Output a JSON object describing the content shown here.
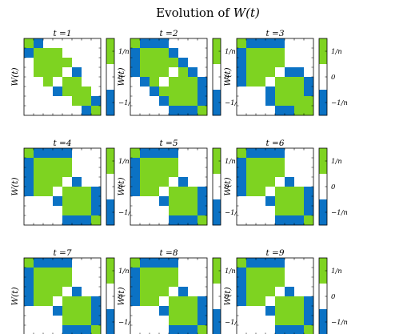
{
  "colors": {
    "positive": "#7ED321",
    "zero": "#FFFFFF",
    "negative": "#0B72C4"
  },
  "chart_data": {
    "type": "heatmap",
    "title": "Evolution of W(t)",
    "title_parts": {
      "before": "Evolution of ",
      "math": "W(t)"
    },
    "ylabel": "W(t)",
    "grid_rows": 3,
    "grid_cols": 3,
    "matrix_size": 8,
    "value_scale": "1/n",
    "colorbar": {
      "ticks": [
        {
          "value": 1,
          "label": "1/n"
        },
        {
          "value": 0,
          "label": "0"
        },
        {
          "value": -1,
          "label": "−1/n"
        }
      ]
    },
    "panels": [
      {
        "title": "t =1",
        "matrix": [
          [
            1,
            -1,
            0,
            0,
            0,
            0,
            0,
            0
          ],
          [
            -1,
            1,
            1,
            1,
            0,
            0,
            0,
            0
          ],
          [
            0,
            1,
            1,
            1,
            1,
            0,
            0,
            0
          ],
          [
            0,
            1,
            1,
            1,
            0,
            -1,
            0,
            0
          ],
          [
            0,
            0,
            1,
            0,
            1,
            1,
            0,
            0
          ],
          [
            0,
            0,
            0,
            -1,
            1,
            1,
            1,
            0
          ],
          [
            0,
            0,
            0,
            0,
            0,
            1,
            1,
            -1
          ],
          [
            0,
            0,
            0,
            0,
            0,
            0,
            -1,
            1
          ]
        ]
      },
      {
        "title": "t =2",
        "matrix": [
          [
            1,
            -1,
            -1,
            -1,
            0,
            0,
            0,
            0
          ],
          [
            -1,
            1,
            1,
            1,
            -1,
            0,
            0,
            0
          ],
          [
            -1,
            1,
            1,
            1,
            1,
            -1,
            0,
            0
          ],
          [
            -1,
            1,
            1,
            1,
            0,
            1,
            -1,
            0
          ],
          [
            0,
            -1,
            1,
            0,
            1,
            1,
            1,
            -1
          ],
          [
            0,
            0,
            -1,
            1,
            1,
            1,
            1,
            -1
          ],
          [
            0,
            0,
            0,
            -1,
            1,
            1,
            1,
            -1
          ],
          [
            0,
            0,
            0,
            0,
            -1,
            -1,
            -1,
            1
          ]
        ]
      },
      {
        "title": "t =3",
        "matrix": [
          [
            1,
            -1,
            -1,
            -1,
            -1,
            0,
            0,
            0
          ],
          [
            -1,
            1,
            1,
            1,
            1,
            0,
            0,
            0
          ],
          [
            -1,
            1,
            1,
            1,
            1,
            0,
            0,
            0
          ],
          [
            -1,
            1,
            1,
            1,
            0,
            -1,
            -1,
            0
          ],
          [
            -1,
            1,
            1,
            0,
            1,
            1,
            1,
            -1
          ],
          [
            0,
            0,
            0,
            -1,
            1,
            1,
            1,
            -1
          ],
          [
            0,
            0,
            0,
            -1,
            1,
            1,
            1,
            1
          ],
          [
            0,
            0,
            0,
            0,
            -1,
            -1,
            1,
            1
          ]
        ]
      },
      {
        "title": "t =4",
        "matrix": [
          [
            1,
            -1,
            -1,
            -1,
            -1,
            0,
            0,
            0
          ],
          [
            -1,
            1,
            1,
            1,
            1,
            0,
            0,
            0
          ],
          [
            -1,
            1,
            1,
            1,
            1,
            0,
            0,
            0
          ],
          [
            -1,
            1,
            1,
            1,
            0,
            -1,
            0,
            0
          ],
          [
            -1,
            1,
            1,
            0,
            1,
            1,
            1,
            -1
          ],
          [
            0,
            0,
            0,
            -1,
            1,
            1,
            1,
            -1
          ],
          [
            0,
            0,
            0,
            0,
            1,
            1,
            1,
            -1
          ],
          [
            0,
            0,
            0,
            0,
            -1,
            -1,
            -1,
            1
          ]
        ]
      },
      {
        "title": "t =5",
        "matrix": [
          [
            1,
            -1,
            -1,
            -1,
            -1,
            0,
            0,
            0
          ],
          [
            -1,
            1,
            1,
            1,
            1,
            0,
            0,
            0
          ],
          [
            -1,
            1,
            1,
            1,
            1,
            0,
            0,
            0
          ],
          [
            -1,
            1,
            1,
            1,
            0,
            -1,
            0,
            0
          ],
          [
            -1,
            1,
            1,
            0,
            1,
            1,
            1,
            -1
          ],
          [
            0,
            0,
            0,
            -1,
            1,
            1,
            1,
            -1
          ],
          [
            0,
            0,
            0,
            0,
            1,
            1,
            1,
            -1
          ],
          [
            0,
            0,
            0,
            0,
            -1,
            -1,
            -1,
            1
          ]
        ]
      },
      {
        "title": "t =6",
        "matrix": [
          [
            1,
            -1,
            -1,
            -1,
            -1,
            0,
            0,
            0
          ],
          [
            -1,
            1,
            1,
            1,
            1,
            0,
            0,
            0
          ],
          [
            -1,
            1,
            1,
            1,
            1,
            0,
            0,
            0
          ],
          [
            -1,
            1,
            1,
            1,
            0,
            -1,
            0,
            0
          ],
          [
            -1,
            1,
            1,
            0,
            1,
            1,
            1,
            -1
          ],
          [
            0,
            0,
            0,
            -1,
            1,
            1,
            1,
            -1
          ],
          [
            0,
            0,
            0,
            0,
            1,
            1,
            1,
            -1
          ],
          [
            0,
            0,
            0,
            0,
            -1,
            -1,
            -1,
            1
          ]
        ]
      },
      {
        "title": "t =7",
        "matrix": [
          [
            1,
            -1,
            -1,
            -1,
            -1,
            0,
            0,
            0
          ],
          [
            -1,
            1,
            1,
            1,
            1,
            0,
            0,
            0
          ],
          [
            -1,
            1,
            1,
            1,
            1,
            0,
            0,
            0
          ],
          [
            -1,
            1,
            1,
            1,
            0,
            -1,
            0,
            0
          ],
          [
            -1,
            1,
            1,
            0,
            1,
            1,
            1,
            -1
          ],
          [
            0,
            0,
            0,
            -1,
            1,
            1,
            1,
            -1
          ],
          [
            0,
            0,
            0,
            0,
            1,
            1,
            1,
            -1
          ],
          [
            0,
            0,
            0,
            0,
            -1,
            -1,
            -1,
            1
          ]
        ]
      },
      {
        "title": "t =8",
        "matrix": [
          [
            1,
            -1,
            -1,
            -1,
            -1,
            0,
            0,
            0
          ],
          [
            -1,
            1,
            1,
            1,
            1,
            0,
            0,
            0
          ],
          [
            -1,
            1,
            1,
            1,
            1,
            0,
            0,
            0
          ],
          [
            -1,
            1,
            1,
            1,
            0,
            -1,
            0,
            0
          ],
          [
            -1,
            1,
            1,
            0,
            1,
            1,
            1,
            -1
          ],
          [
            0,
            0,
            0,
            -1,
            1,
            1,
            1,
            -1
          ],
          [
            0,
            0,
            0,
            0,
            1,
            1,
            1,
            -1
          ],
          [
            0,
            0,
            0,
            0,
            -1,
            -1,
            -1,
            1
          ]
        ]
      },
      {
        "title": "t =9",
        "matrix": [
          [
            1,
            -1,
            -1,
            -1,
            -1,
            0,
            0,
            0
          ],
          [
            -1,
            1,
            1,
            1,
            1,
            0,
            0,
            0
          ],
          [
            -1,
            1,
            1,
            1,
            1,
            0,
            0,
            0
          ],
          [
            -1,
            1,
            1,
            1,
            0,
            -1,
            0,
            0
          ],
          [
            -1,
            1,
            1,
            0,
            1,
            1,
            1,
            -1
          ],
          [
            0,
            0,
            0,
            -1,
            1,
            1,
            1,
            -1
          ],
          [
            0,
            0,
            0,
            0,
            1,
            1,
            1,
            -1
          ],
          [
            0,
            0,
            0,
            0,
            -1,
            -1,
            -1,
            1
          ]
        ]
      }
    ]
  }
}
